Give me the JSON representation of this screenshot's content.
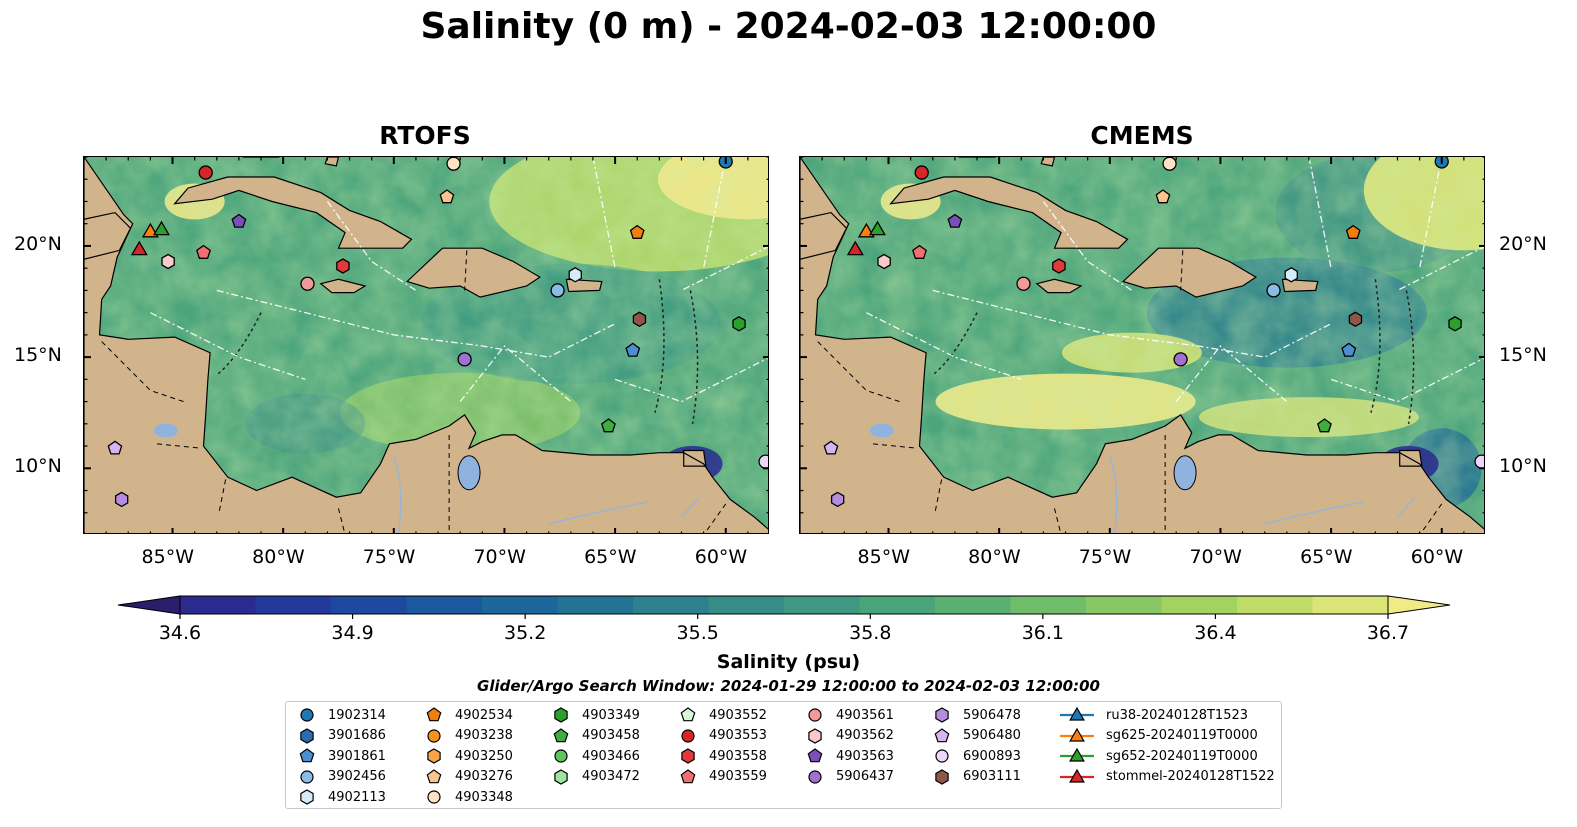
{
  "title": "Salinity (0 m) - 2024-02-03 12:00:00",
  "panels": [
    {
      "title": "RTOFS"
    },
    {
      "title": "CMEMS"
    }
  ],
  "lat_labels": [
    "20°N",
    "15°N",
    "10°N"
  ],
  "lon_labels": [
    "85°W",
    "80°W",
    "75°W",
    "70°W",
    "65°W",
    "60°W"
  ],
  "colorbar": {
    "label": "Salinity (psu)",
    "ticks": [
      "34.6",
      "34.9",
      "35.2",
      "35.5",
      "35.8",
      "36.1",
      "36.4",
      "36.7"
    ],
    "min": 34.5,
    "max": 36.7,
    "colors": [
      "#2a1e6b",
      "#2b2a8e",
      "#233a9c",
      "#1d4a9f",
      "#1b589d",
      "#1d6699",
      "#237494",
      "#2d808e",
      "#378c88",
      "#3f9882",
      "#4aa47a",
      "#5bb071",
      "#6fbc69",
      "#88c763",
      "#a2d260",
      "#bfdc67",
      "#dbe477",
      "#f2ea86"
    ],
    "extend": "both"
  },
  "search_window": "Glider/Argo Search Window: 2024-01-29 12:00:00 to 2024-02-03 12:00:00",
  "land_color": "#d2b48c",
  "lake_color": "#8fb3de",
  "legend": {
    "columns": [
      [
        {
          "label": "1902314",
          "marker": "circle",
          "color": "#1f77b4"
        },
        {
          "label": "3901686",
          "marker": "hexagon",
          "color": "#2a6db0"
        },
        {
          "label": "3901861",
          "marker": "pentagon",
          "color": "#4a8fd1"
        },
        {
          "label": "3902456",
          "marker": "circle",
          "color": "#8bbce6"
        },
        {
          "label": "4902113",
          "marker": "hexagon",
          "color": "#d6eaf8"
        }
      ],
      [
        {
          "label": "4902534",
          "marker": "pentagon",
          "color": "#f07f0e"
        },
        {
          "label": "4903238",
          "marker": "circle",
          "color": "#f5921e"
        },
        {
          "label": "4903250",
          "marker": "hexagon",
          "color": "#f7a54a"
        },
        {
          "label": "4903276",
          "marker": "pentagon",
          "color": "#f9c48f"
        },
        {
          "label": "4903348",
          "marker": "circle",
          "color": "#fde2c4"
        }
      ],
      [
        {
          "label": "4903349",
          "marker": "hexagon",
          "color": "#2ca02c"
        },
        {
          "label": "4903458",
          "marker": "pentagon",
          "color": "#3fae3f"
        },
        {
          "label": "4903466",
          "marker": "circle",
          "color": "#5cc65c"
        },
        {
          "label": "4903472",
          "marker": "hexagon",
          "color": "#9ee39e"
        }
      ],
      [
        {
          "label": "4903552",
          "marker": "pentagon",
          "color": "#d8f7d8"
        },
        {
          "label": "4903553",
          "marker": "circle",
          "color": "#d62728"
        },
        {
          "label": "4903558",
          "marker": "hexagon",
          "color": "#e03a3a"
        },
        {
          "label": "4903559",
          "marker": "pentagon",
          "color": "#f07070"
        }
      ],
      [
        {
          "label": "4903561",
          "marker": "circle",
          "color": "#f29a9a"
        },
        {
          "label": "4903562",
          "marker": "hexagon",
          "color": "#fbcaca"
        },
        {
          "label": "4903563",
          "marker": "pentagon",
          "color": "#7b4fb8"
        },
        {
          "label": "5906437",
          "marker": "circle",
          "color": "#a171d1"
        }
      ],
      [
        {
          "label": "5906478",
          "marker": "hexagon",
          "color": "#b78be0"
        },
        {
          "label": "5906480",
          "marker": "pentagon",
          "color": "#d5b4f0"
        },
        {
          "label": "6900893",
          "marker": "circle",
          "color": "#ecd6fa"
        },
        {
          "label": "6903111",
          "marker": "hexagon",
          "color": "#8c564b"
        }
      ],
      [
        {
          "label": "ru38-20240128T1523",
          "marker": "triangle-line",
          "color": "#1f77b4"
        },
        {
          "label": "sg625-20240119T0000",
          "marker": "triangle-line",
          "color": "#ff7f0e"
        },
        {
          "label": "sg652-20240119T0000",
          "marker": "triangle-line",
          "color": "#2ca02c"
        },
        {
          "label": "stommel-20240128T1522",
          "marker": "triangle-line",
          "color": "#d62728"
        }
      ]
    ]
  },
  "floats": [
    {
      "label": "1902314",
      "lon": -60.0,
      "lat": 23.8
    },
    {
      "label": "3901861",
      "lon": -64.2,
      "lat": 15.3
    },
    {
      "label": "3902456",
      "lon": -67.6,
      "lat": 18.0
    },
    {
      "label": "4902113",
      "lon": -66.8,
      "lat": 18.7
    },
    {
      "label": "4902534",
      "lon": -64.0,
      "lat": 20.6
    },
    {
      "label": "4903276",
      "lon": -72.6,
      "lat": 22.2
    },
    {
      "label": "4903348",
      "lon": -72.3,
      "lat": 23.7
    },
    {
      "label": "4903349",
      "lon": -59.4,
      "lat": 16.5
    },
    {
      "label": "4903458",
      "lon": -65.3,
      "lat": 11.9
    },
    {
      "label": "4903553",
      "lon": -83.5,
      "lat": 23.3
    },
    {
      "label": "4903558",
      "lon": -77.3,
      "lat": 19.1
    },
    {
      "label": "4903559",
      "lon": -83.6,
      "lat": 19.7
    },
    {
      "label": "4903561",
      "lon": -78.9,
      "lat": 18.3
    },
    {
      "label": "4903562",
      "lon": -85.2,
      "lat": 19.3
    },
    {
      "label": "4903563",
      "lon": -82.0,
      "lat": 21.1
    },
    {
      "label": "5906437",
      "lon": -71.8,
      "lat": 14.9
    },
    {
      "label": "5906478",
      "lon": -87.3,
      "lat": 8.6
    },
    {
      "label": "5906480",
      "lon": -87.6,
      "lat": 10.9
    },
    {
      "label": "6900893",
      "lon": -58.2,
      "lat": 10.3
    },
    {
      "label": "6903111",
      "lon": -63.9,
      "lat": 16.7
    }
  ],
  "gliders": [
    {
      "label": "sg625-20240119T0000",
      "lon": -86.0,
      "lat": 20.6
    },
    {
      "label": "sg652-20240119T0000",
      "lon": -85.5,
      "lat": 20.7
    },
    {
      "label": "stommel-20240128T1522",
      "lon": -86.5,
      "lat": 19.8
    }
  ],
  "map_extent": {
    "lon_min": -89,
    "lon_max": -58,
    "lat_min": 7,
    "lat_max": 24
  }
}
